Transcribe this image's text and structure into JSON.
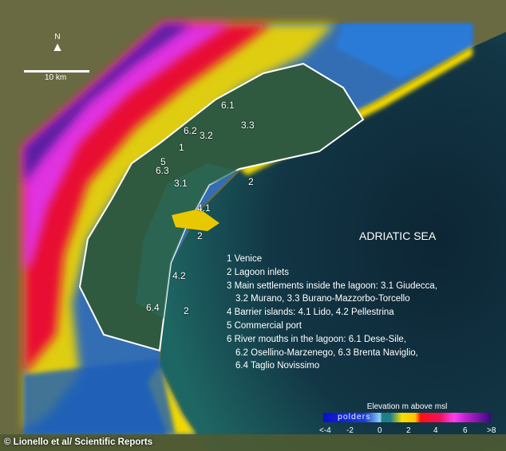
{
  "map": {
    "sea_label": "ADRIATIC SEA",
    "north_label": "N",
    "scale_label": "10 km",
    "site_labels": [
      "6.1",
      "6.2",
      "3.2",
      "3.3",
      "1",
      "5",
      "6.3",
      "3.1",
      "2",
      "4.1",
      "2",
      "4.2",
      "6.4",
      "2"
    ],
    "legend_items": [
      "1 Venice",
      "2 Lagoon inlets",
      "3 Main settlements inside the lagoon: 3.1 Giudecca,",
      "3.2 Murano, 3.3 Burano-Mazzorbo-Torcello",
      "4 Barrier islands: 4.1 Lido, 4.2 Pellestrina",
      "5 Commercial port",
      "6 River mouths in the lagoon: 6.1 Dese-Sile,",
      "6.2 Osellino-Marzenego, 6.3 Brenta Naviglio,",
      "6.4 Taglio Novissimo"
    ],
    "elevation_legend": {
      "title": "Elevation m above msl",
      "polders_label": "polders",
      "ticks": [
        "<-4",
        "-2",
        "0",
        "2",
        "4",
        "6",
        ">8"
      ],
      "colors": [
        "#0a0fc8",
        "#8fd0f0",
        "#1c7f8a",
        "#f7e000",
        "#ff1010",
        "#ff40f0",
        "#3a0a80"
      ]
    },
    "credit": "© Lionello et al/ Scientific Reports"
  }
}
